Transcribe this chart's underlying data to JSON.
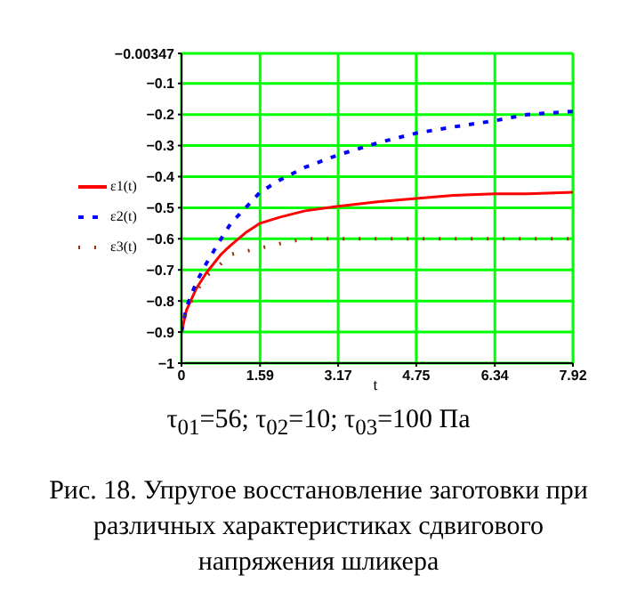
{
  "chart_data": {
    "type": "line",
    "xlabel": "t",
    "annotations": [
      "τ$_{01}$=56; τ$_{02}$=10; τ$_{03}$=100 Па",
      "Рис. 18. Упругое восстановление заготовки при различных характеристиках сдвигового напряжения шликера"
    ],
    "x": [
      0,
      0.1,
      0.3,
      0.5,
      0.8,
      1,
      1.3,
      1.59,
      2,
      2.5,
      3.17,
      4,
      4.75,
      5.5,
      6.34,
      7,
      7.92
    ],
    "series": [
      {
        "name": "ε1(t)",
        "color": "#ff0000",
        "line_style": "solid",
        "values": [
          -0.9,
          -0.83,
          -0.76,
          -0.71,
          -0.65,
          -0.62,
          -0.58,
          -0.55,
          -0.53,
          -0.51,
          -0.495,
          -0.48,
          -0.47,
          -0.46,
          -0.455,
          -0.455,
          -0.45
        ]
      },
      {
        "name": "ε2(t)",
        "color": "#0000ff",
        "line_style": "dashed",
        "values": [
          -0.9,
          -0.82,
          -0.74,
          -0.68,
          -0.6,
          -0.55,
          -0.5,
          -0.45,
          -0.41,
          -0.37,
          -0.33,
          -0.29,
          -0.26,
          -0.24,
          -0.22,
          -0.2,
          -0.19
        ]
      },
      {
        "name": "ε3(t)",
        "color": "#993300",
        "line_style": "dotted",
        "values": [
          -0.9,
          -0.83,
          -0.77,
          -0.72,
          -0.68,
          -0.65,
          -0.64,
          -0.63,
          -0.615,
          -0.6,
          -0.6,
          -0.6,
          -0.6,
          -0.6,
          -0.6,
          -0.6,
          -0.6
        ]
      }
    ],
    "xlim": [
      0,
      7.92
    ],
    "xticks": [
      0,
      1.59,
      3.17,
      4.75,
      6.34,
      7.92
    ],
    "ylim": [
      -1,
      -0.00347
    ],
    "yticks": [
      -1,
      -0.9,
      -0.8,
      -0.7,
      -0.6,
      -0.5,
      -0.4,
      -0.3,
      -0.2,
      -0.1,
      -0.00347
    ],
    "grid": true,
    "legend": "left",
    "marker": "none"
  }
}
